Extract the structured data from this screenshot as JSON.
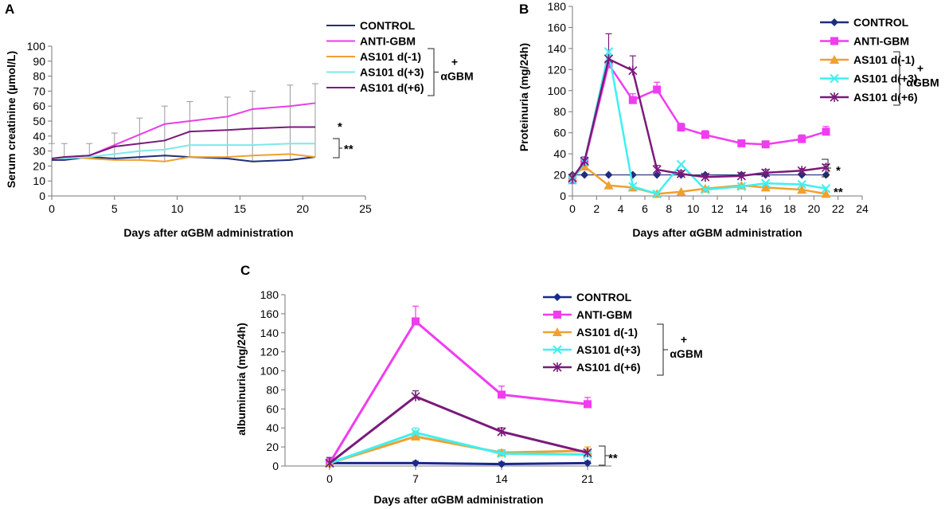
{
  "chart_data": [
    {
      "panel": "A",
      "type": "line",
      "xlabel": "Days after αGBM administration",
      "ylabel": "Serum  creatinine (µmol/L)",
      "xlim": [
        0,
        25
      ],
      "ylim": [
        0,
        100
      ],
      "xticks": [
        0,
        5,
        10,
        15,
        20,
        25
      ],
      "yticks": [
        0,
        10,
        20,
        30,
        40,
        50,
        60,
        70,
        80,
        90,
        100
      ],
      "series": [
        {
          "name": "CONTROL",
          "color": "#1f2e7a",
          "marker": "none",
          "x": [
            0,
            1,
            3,
            5,
            7,
            9,
            11,
            14,
            16,
            19,
            21
          ],
          "y": [
            24,
            24,
            26,
            25,
            26,
            27,
            26,
            25,
            23,
            24,
            26
          ]
        },
        {
          "name": "ANTI-GBM",
          "color": "#e83ee8",
          "marker": "none",
          "x": [
            0,
            1,
            3,
            5,
            7,
            9,
            11,
            14,
            16,
            19,
            21
          ],
          "y": [
            25,
            26,
            27,
            34,
            41,
            48,
            50,
            53,
            58,
            60,
            62
          ]
        },
        {
          "name": "AS101 d(-1)",
          "color": "#f0a030",
          "marker": "none",
          "x": [
            0,
            1,
            3,
            5,
            7,
            9,
            11,
            14,
            16,
            19,
            21
          ],
          "y": [
            25,
            26,
            25,
            24,
            24,
            23,
            26,
            26,
            27,
            28,
            26
          ]
        },
        {
          "name": "AS101 d(+3)",
          "color": "#7ee8e8",
          "marker": "none",
          "x": [
            0,
            1,
            3,
            5,
            7,
            9,
            11,
            14,
            16,
            19,
            21
          ],
          "y": [
            25,
            25,
            26,
            28,
            30,
            31,
            34,
            34,
            34,
            35,
            35
          ]
        },
        {
          "name": "AS101 d(+6)",
          "color": "#7a1a7a",
          "marker": "none",
          "x": [
            0,
            1,
            3,
            5,
            7,
            9,
            11,
            14,
            16,
            19,
            21
          ],
          "y": [
            25,
            26,
            27,
            33,
            35,
            37,
            43,
            44,
            45,
            46,
            46
          ]
        }
      ],
      "errors": {
        "x": [
          0,
          1,
          3,
          5,
          7,
          9,
          11,
          14,
          16,
          19,
          21
        ],
        "top": [
          35,
          35,
          35,
          42,
          52,
          60,
          63,
          66,
          70,
          74,
          75
        ]
      },
      "legend": {
        "bracket_top": "+",
        "bracket_bottom": "αGBM"
      },
      "annotations": [
        "*",
        "**"
      ]
    },
    {
      "panel": "B",
      "type": "line",
      "xlabel": "Days after  αGBM administration",
      "ylabel": "Proteinuria (mg/24h)",
      "xlim": [
        0,
        24
      ],
      "ylim": [
        0,
        180
      ],
      "xticks": [
        0,
        2,
        4,
        6,
        8,
        10,
        12,
        14,
        16,
        18,
        20,
        22,
        24
      ],
      "yticks": [
        0,
        20,
        40,
        60,
        80,
        100,
        120,
        140,
        160,
        180
      ],
      "series": [
        {
          "name": "CONTROL",
          "color": "#1f2e7a",
          "marker": "diamond",
          "x": [
            0,
            1,
            3,
            5,
            7,
            9,
            11,
            14,
            16,
            19,
            21
          ],
          "y": [
            20,
            20,
            20,
            20,
            20,
            20,
            20,
            20,
            20,
            20,
            20
          ]
        },
        {
          "name": "ANTI-GBM",
          "color": "#f03cf0",
          "marker": "square",
          "x": [
            0,
            1,
            3,
            5,
            7,
            9,
            11,
            14,
            16,
            19,
            21
          ],
          "y": [
            15,
            32,
            125,
            91,
            101,
            65,
            58,
            50,
            49,
            54,
            61
          ]
        },
        {
          "name": "AS101 d(-1)",
          "color": "#f0a030",
          "marker": "triangle",
          "x": [
            0,
            1,
            3,
            5,
            7,
            9,
            11,
            14,
            16,
            19,
            21
          ],
          "y": [
            18,
            28,
            10,
            8,
            2,
            4,
            7,
            10,
            8,
            6,
            2
          ]
        },
        {
          "name": "AS101 d(+3)",
          "color": "#3ff0f0",
          "marker": "x",
          "x": [
            0,
            1,
            3,
            5,
            7,
            9,
            11,
            14,
            16,
            19,
            21
          ],
          "y": [
            15,
            32,
            137,
            9,
            2,
            30,
            6,
            9,
            12,
            11,
            7
          ]
        },
        {
          "name": "AS101 d(+6)",
          "color": "#7a1a7a",
          "marker": "star",
          "x": [
            0,
            1,
            3,
            5,
            7,
            9,
            11,
            14,
            16,
            19,
            21
          ],
          "y": [
            17,
            33,
            130,
            119,
            25,
            21,
            18,
            19,
            22,
            24,
            27
          ]
        }
      ],
      "legend": {
        "bracket_top": "+",
        "bracket_bottom": "αGBM"
      },
      "annotations": [
        "*",
        "**"
      ]
    },
    {
      "panel": "C",
      "type": "line",
      "xlabel": "Days after αGBM administration",
      "ylabel": "albuminuria (mg/24h)",
      "categories": [
        "0",
        "7",
        "14",
        "21"
      ],
      "ylim": [
        0,
        180
      ],
      "yticks": [
        0,
        20,
        40,
        60,
        80,
        100,
        120,
        140,
        160,
        180
      ],
      "series": [
        {
          "name": "CONTROL",
          "color": "#1a2a8a",
          "marker": "diamond",
          "values": [
            3,
            3,
            2,
            3
          ],
          "err": [
            2,
            2,
            2,
            2
          ]
        },
        {
          "name": "ANTI-GBM",
          "color": "#f03cf0",
          "marker": "square",
          "values": [
            3,
            152,
            75,
            65
          ],
          "err": [
            5,
            16,
            9,
            7
          ]
        },
        {
          "name": "AS101 d(-1)",
          "color": "#f0a030",
          "marker": "triangle",
          "values": [
            3,
            31,
            14,
            16
          ],
          "err": [
            4,
            5,
            3,
            4
          ]
        },
        {
          "name": "AS101 d(+3)",
          "color": "#3ff0f0",
          "marker": "x",
          "values": [
            3,
            35,
            13,
            12
          ],
          "err": [
            4,
            5,
            3,
            3
          ]
        },
        {
          "name": "AS101 d(+6)",
          "color": "#7a1a7a",
          "marker": "star",
          "values": [
            3,
            73,
            36,
            14
          ],
          "err": [
            6,
            6,
            4,
            3
          ]
        }
      ],
      "legend": {
        "bracket_top": "+",
        "bracket_bottom": "αGBM"
      },
      "annotations": [
        "**"
      ]
    }
  ]
}
